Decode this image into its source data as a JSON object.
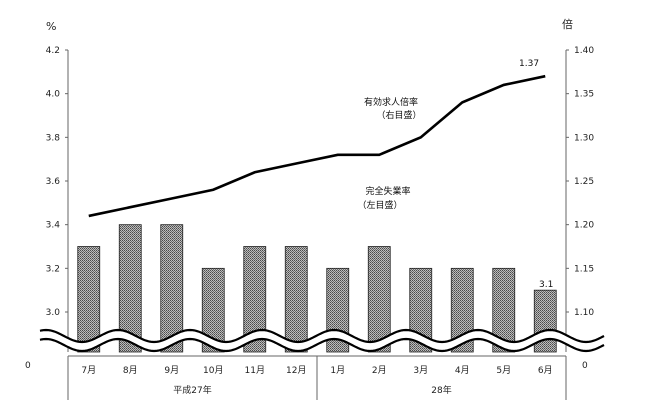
{
  "chart_data": {
    "type": "bar+line",
    "categories": [
      "7月",
      "8月",
      "9月",
      "10月",
      "11月",
      "12月",
      "1月",
      "2月",
      "3月",
      "4月",
      "5月",
      "6月"
    ],
    "year_groups": [
      {
        "label": "平成27年",
        "span": 6
      },
      {
        "label": "28年",
        "span": 6
      }
    ],
    "left_axis": {
      "unit": "%",
      "ylim": [
        3.0,
        4.2
      ],
      "ticks": [
        "3.0",
        "3.2",
        "3.4",
        "3.6",
        "3.8",
        "4.0",
        "4.2"
      ],
      "break_label": "0"
    },
    "right_axis": {
      "unit": "倍",
      "ylim": [
        1.1,
        1.4
      ],
      "ticks": [
        "1.10",
        "1.15",
        "1.20",
        "1.25",
        "1.30",
        "1.35",
        "1.40"
      ],
      "break_label": "0"
    },
    "series": [
      {
        "name_lines": [
          "完全失業率",
          "（左目盛）"
        ],
        "type": "bar",
        "axis": "left",
        "values": [
          3.3,
          3.4,
          3.4,
          3.2,
          3.3,
          3.3,
          3.2,
          3.3,
          3.2,
          3.2,
          3.2,
          3.1
        ],
        "last_label": "3.1",
        "color": "#8c8c8c"
      },
      {
        "name_lines": [
          "有効求人倍率",
          "（右目盛）"
        ],
        "type": "line",
        "axis": "right",
        "values": [
          1.21,
          1.22,
          1.23,
          1.24,
          1.26,
          1.27,
          1.28,
          1.28,
          1.3,
          1.34,
          1.36,
          1.37
        ],
        "last_label": "1.37",
        "color": "#000000"
      }
    ]
  }
}
